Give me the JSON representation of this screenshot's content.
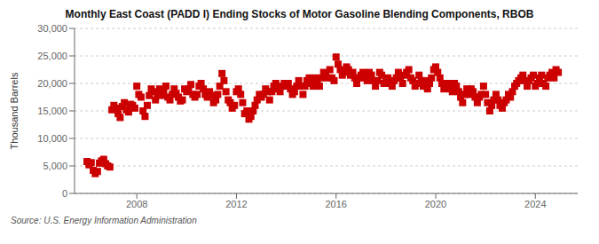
{
  "chart_data": {
    "type": "scatter",
    "title": "Monthly East Coast (PADD I) Ending Stocks of Motor Gasoline Blending Components, RBOB",
    "ylabel": "Thousand Barrels",
    "annotations": [
      "Source: U.S. Energy Information Administration"
    ],
    "color": "#cc0000",
    "marker": "square",
    "grid": true,
    "xlim": [
      2005.5,
      2025.7
    ],
    "xticks": [
      2008,
      2012,
      2016,
      2020,
      2024
    ],
    "ylim": [
      0,
      30000
    ],
    "yticks": [
      0,
      {
        "value": 5000,
        "label": "5,000"
      },
      {
        "value": 10000,
        "label": "10,000"
      },
      {
        "value": 15000,
        "label": "15,000"
      },
      {
        "value": 20000,
        "label": "20,000"
      },
      {
        "value": 25000,
        "label": "25,000"
      },
      {
        "value": 30000,
        "label": "30,000"
      }
    ],
    "x": [
      2006.0,
      2006.08,
      2006.17,
      2006.25,
      2006.33,
      2006.42,
      2006.5,
      2006.58,
      2006.67,
      2006.75,
      2006.83,
      2006.92,
      2007.0,
      2007.08,
      2007.17,
      2007.25,
      2007.33,
      2007.42,
      2007.5,
      2007.58,
      2007.67,
      2007.75,
      2007.83,
      2007.92,
      2008.0,
      2008.08,
      2008.17,
      2008.25,
      2008.33,
      2008.42,
      2008.5,
      2008.58,
      2008.67,
      2008.75,
      2008.83,
      2008.92,
      2009.0,
      2009.08,
      2009.17,
      2009.25,
      2009.33,
      2009.42,
      2009.5,
      2009.58,
      2009.67,
      2009.75,
      2009.83,
      2009.92,
      2010.0,
      2010.08,
      2010.17,
      2010.25,
      2010.33,
      2010.42,
      2010.5,
      2010.58,
      2010.67,
      2010.75,
      2010.83,
      2010.92,
      2011.0,
      2011.08,
      2011.17,
      2011.25,
      2011.33,
      2011.42,
      2011.5,
      2011.58,
      2011.67,
      2011.75,
      2011.83,
      2011.92,
      2012.0,
      2012.08,
      2012.17,
      2012.25,
      2012.33,
      2012.42,
      2012.5,
      2012.58,
      2012.67,
      2012.75,
      2012.83,
      2012.92,
      2013.0,
      2013.08,
      2013.17,
      2013.25,
      2013.33,
      2013.42,
      2013.5,
      2013.58,
      2013.67,
      2013.75,
      2013.83,
      2013.92,
      2014.0,
      2014.08,
      2014.17,
      2014.25,
      2014.33,
      2014.42,
      2014.5,
      2014.58,
      2014.67,
      2014.75,
      2014.83,
      2014.92,
      2015.0,
      2015.08,
      2015.17,
      2015.25,
      2015.33,
      2015.42,
      2015.5,
      2015.58,
      2015.67,
      2015.75,
      2015.83,
      2015.92,
      2016.0,
      2016.08,
      2016.17,
      2016.25,
      2016.33,
      2016.42,
      2016.5,
      2016.58,
      2016.67,
      2016.75,
      2016.83,
      2016.92,
      2017.0,
      2017.08,
      2017.17,
      2017.25,
      2017.33,
      2017.42,
      2017.5,
      2017.58,
      2017.67,
      2017.75,
      2017.83,
      2017.92,
      2018.0,
      2018.08,
      2018.17,
      2018.25,
      2018.33,
      2018.42,
      2018.5,
      2018.58,
      2018.67,
      2018.75,
      2018.83,
      2018.92,
      2019.0,
      2019.08,
      2019.17,
      2019.25,
      2019.33,
      2019.42,
      2019.5,
      2019.58,
      2019.67,
      2019.75,
      2019.83,
      2019.92,
      2020.0,
      2020.08,
      2020.17,
      2020.25,
      2020.33,
      2020.42,
      2020.5,
      2020.58,
      2020.67,
      2020.75,
      2020.83,
      2020.92,
      2021.0,
      2021.08,
      2021.17,
      2021.25,
      2021.33,
      2021.42,
      2021.5,
      2021.58,
      2021.67,
      2021.75,
      2021.83,
      2021.92,
      2022.0,
      2022.08,
      2022.17,
      2022.25,
      2022.33,
      2022.42,
      2022.5,
      2022.58,
      2022.67,
      2022.75,
      2022.83,
      2022.92,
      2023.0,
      2023.08,
      2023.17,
      2023.25,
      2023.33,
      2023.42,
      2023.5,
      2023.58,
      2023.67,
      2023.75,
      2023.83,
      2023.92,
      2024.0,
      2024.08,
      2024.17,
      2024.25,
      2024.33,
      2024.42,
      2024.5,
      2024.58,
      2024.67,
      2024.75,
      2024.83,
      2024.92
    ],
    "values": [
      5800,
      5200,
      5600,
      4200,
      3600,
      4000,
      5500,
      5900,
      6200,
      5400,
      5000,
      4800,
      15200,
      16000,
      15500,
      14500,
      13800,
      15800,
      16500,
      15200,
      14800,
      16200,
      16000,
      15500,
      19500,
      18000,
      17500,
      15000,
      14000,
      16000,
      17800,
      19000,
      18500,
      17000,
      18000,
      19000,
      17800,
      18500,
      19500,
      17500,
      17000,
      18000,
      19000,
      18200,
      17500,
      16800,
      17000,
      19000,
      18500,
      19000,
      19800,
      18000,
      17500,
      18000,
      19500,
      20000,
      19000,
      18000,
      17500,
      18500,
      17800,
      16500,
      17000,
      18000,
      19500,
      21800,
      20500,
      18500,
      17000,
      16500,
      15500,
      16000,
      18500,
      19000,
      18000,
      16500,
      14500,
      15000,
      13500,
      14000,
      15000,
      16000,
      17000,
      18000,
      17500,
      18000,
      19000,
      18500,
      17000,
      18500,
      19500,
      20000,
      19000,
      18500,
      19500,
      20000,
      19500,
      20000,
      19000,
      18000,
      18500,
      19500,
      20500,
      19500,
      18000,
      19500,
      20500,
      21000,
      20000,
      19500,
      21000,
      20500,
      19500,
      21000,
      22000,
      21500,
      21000,
      22500,
      21000,
      20500,
      24800,
      23500,
      22500,
      21500,
      22000,
      23000,
      22500,
      21500,
      22000,
      21000,
      20000,
      21000,
      21500,
      22000,
      21000,
      20500,
      22000,
      21500,
      20500,
      19500,
      20500,
      22000,
      21500,
      20000,
      20500,
      21000,
      20000,
      19500,
      20500,
      21000,
      22000,
      21000,
      20000,
      21500,
      22000,
      22500,
      21000,
      20500,
      19500,
      20000,
      21500,
      20500,
      19500,
      20500,
      19000,
      20000,
      21000,
      22500,
      23000,
      22000,
      21000,
      20000,
      19000,
      19500,
      20000,
      19000,
      18500,
      20000,
      19500,
      18500,
      17500,
      16500,
      18000,
      19000,
      18000,
      19000,
      18500,
      17500,
      16500,
      17500,
      18000,
      19500,
      18000,
      16500,
      15000,
      16000,
      17000,
      18000,
      17000,
      16000,
      15500,
      16500,
      17000,
      18000,
      17500,
      18500,
      19500,
      20000,
      20500,
      21000,
      21500,
      20500,
      19500,
      20500,
      21000,
      21500,
      19500,
      20000,
      21000,
      21500,
      20000,
      19500,
      21000,
      21500,
      22000,
      21000,
      22500,
      22000
    ]
  }
}
